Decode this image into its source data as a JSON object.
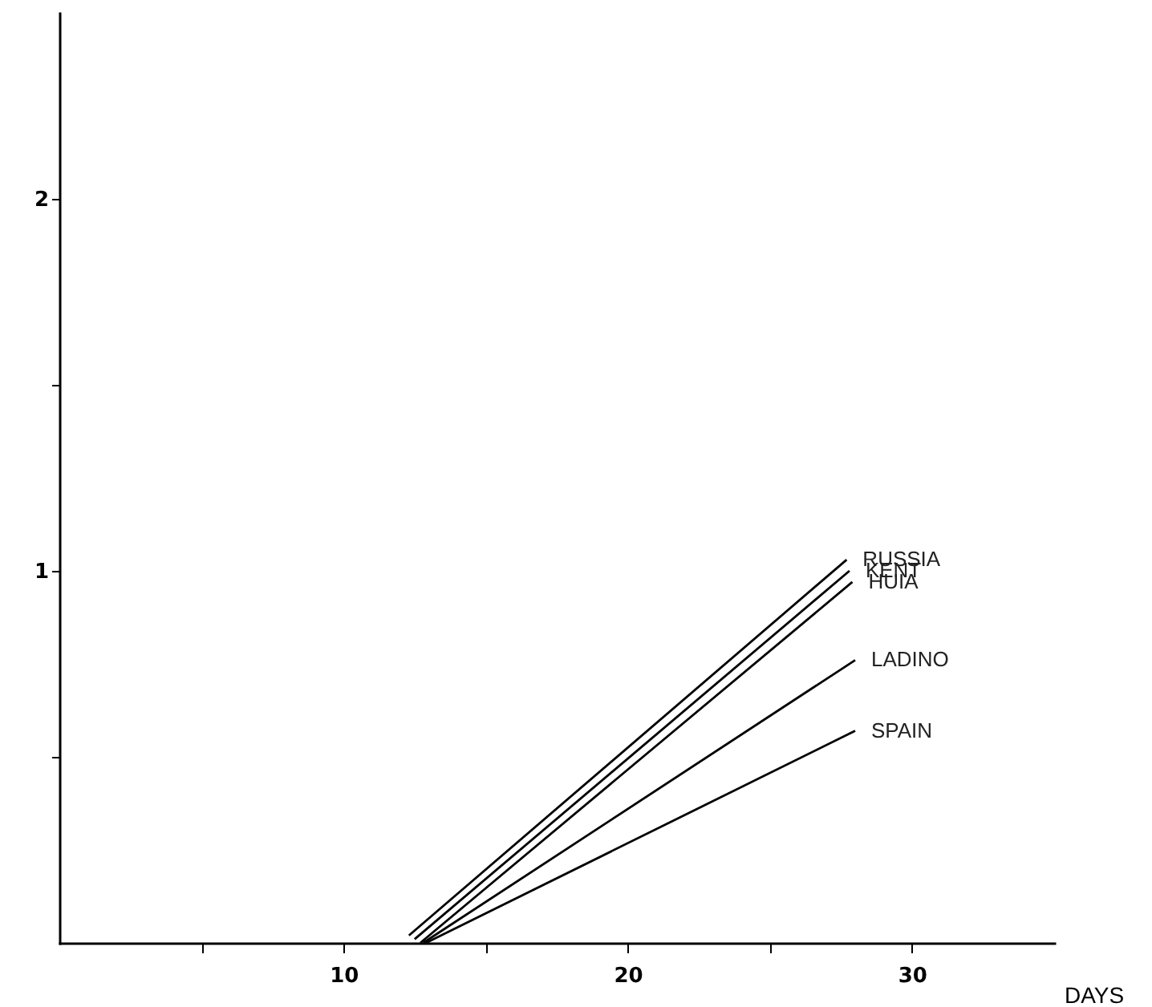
{
  "chart_data": {
    "type": "line",
    "xlabel": "DAYS",
    "xlim": [
      0,
      35
    ],
    "ylim": [
      0,
      2.5
    ],
    "xticks": [
      {
        "value": 5,
        "label": null
      },
      10,
      {
        "value": 15,
        "label": null
      },
      20,
      {
        "value": 25,
        "label": null
      },
      30
    ],
    "yticks": [
      {
        "value": 0.5,
        "label": null
      },
      1,
      {
        "value": 1.5,
        "label": null
      },
      2
    ],
    "grid": false,
    "marker": "none",
    "line_style": "solid",
    "series": [
      {
        "name": "RUSSIA",
        "color": "#000000",
        "x": [
          12.3,
          27.7
        ],
        "values": [
          0.02,
          1.03
        ]
      },
      {
        "name": "KENT",
        "color": "#000000",
        "x": [
          12.5,
          27.8
        ],
        "values": [
          0.01,
          1.0
        ]
      },
      {
        "name": "HUIA",
        "color": "#000000",
        "x": [
          12.7,
          27.9
        ],
        "values": [
          0,
          0.97
        ]
      },
      {
        "name": "LADINO",
        "color": "#000000",
        "x": [
          12.8,
          28.0
        ],
        "values": [
          0,
          0.76
        ]
      },
      {
        "name": "SPAIN",
        "color": "#000000",
        "x": [
          12.9,
          28.0
        ],
        "values": [
          0,
          0.57
        ]
      }
    ]
  }
}
